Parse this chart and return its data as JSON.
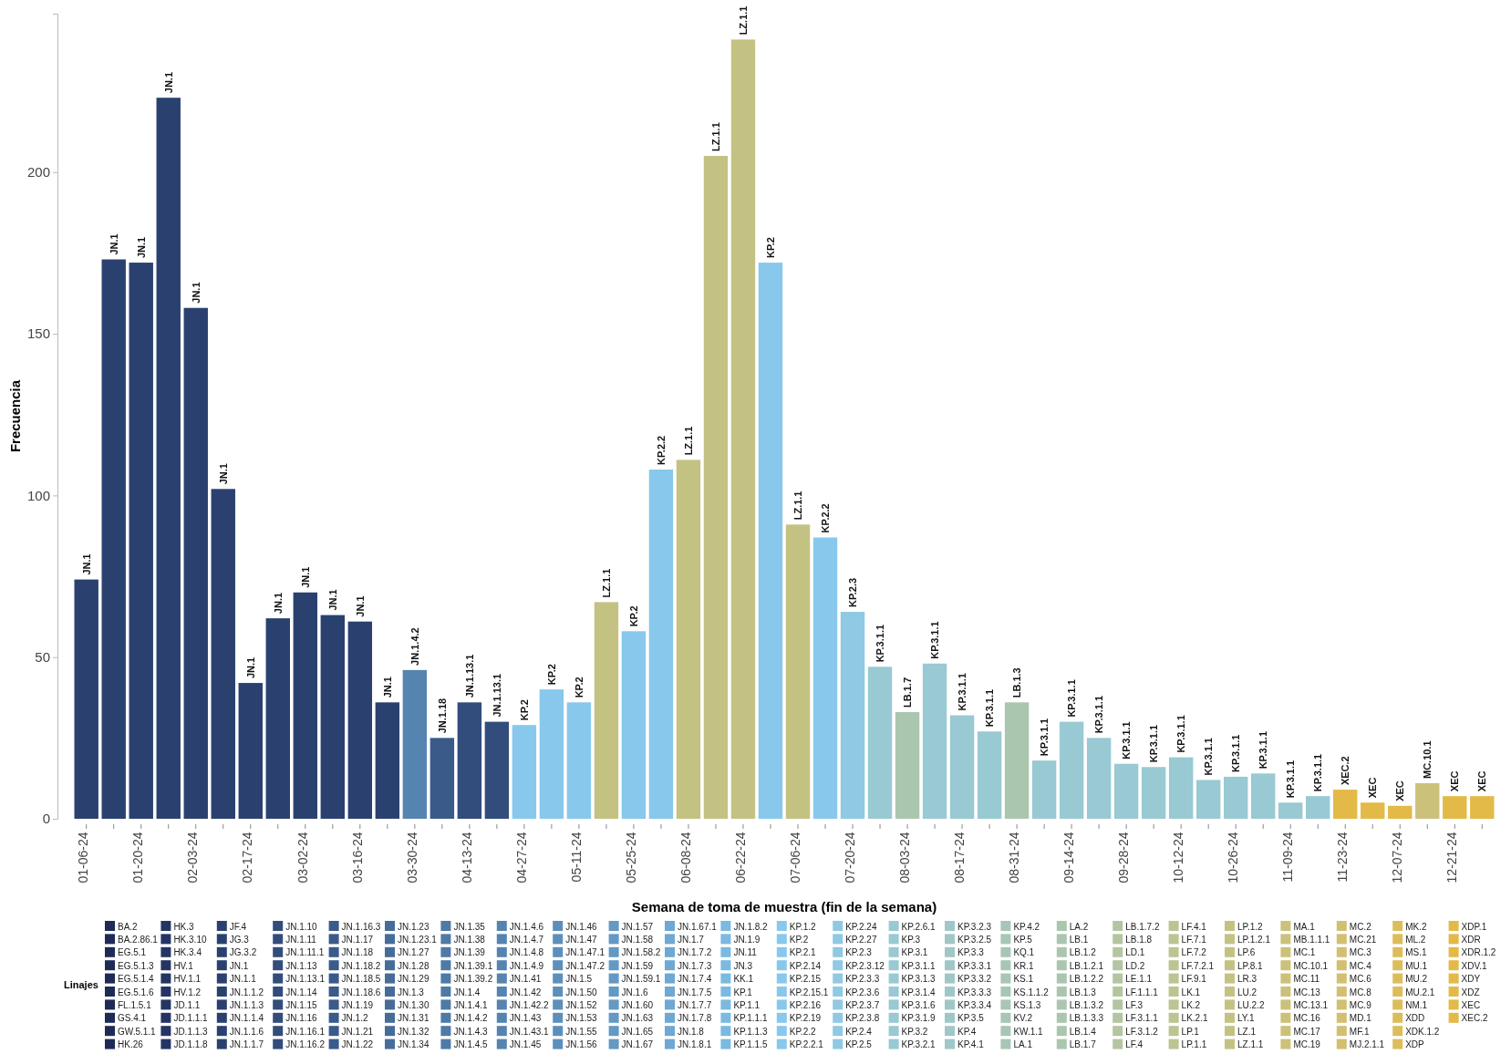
{
  "chart_data": [
    {
      "type": "bar",
      "xlabel": "Semana de toma de muestra (fin de la semana)",
      "ylabel": "Frecuencia",
      "categories": [
        "01-06-24",
        null,
        "01-20-24",
        null,
        "02-03-24",
        null,
        "02-17-24",
        null,
        "03-02-24",
        null,
        "03-16-24",
        null,
        "03-30-24",
        null,
        "04-13-24",
        null,
        "04-27-24",
        null,
        "05-11-24",
        null,
        "05-25-24",
        null,
        "06-08-24",
        null,
        "06-22-24",
        null,
        "07-06-24",
        null,
        "07-20-24",
        null,
        "08-03-24",
        null,
        "08-17-24",
        null,
        "08-31-24",
        null,
        "09-14-24",
        null,
        "09-28-24",
        null,
        "10-12-24",
        null,
        "10-26-24",
        null,
        "11-09-24",
        null,
        "11-23-24",
        null,
        "12-07-24",
        null,
        "12-21-24",
        null
      ],
      "values": [
        74,
        173,
        172,
        223,
        158,
        102,
        42,
        62,
        70,
        63,
        61,
        36,
        46,
        25,
        36,
        30,
        29,
        40,
        36,
        67,
        58,
        108,
        111,
        205,
        241,
        172,
        91,
        87,
        64,
        47,
        33,
        48,
        32,
        27,
        36,
        18,
        30,
        25,
        17,
        16,
        19,
        12,
        13,
        14,
        5,
        7,
        9,
        5,
        4,
        11,
        7,
        7
      ],
      "value_labels": [
        "JN.1",
        "JN.1",
        "JN.1",
        "JN.1",
        "JN.1",
        "JN.1",
        "JN.1",
        "JN.1",
        "JN.1",
        "JN.1",
        "JN.1",
        "JN.1",
        "JN.1.4.2",
        "JN.1.18",
        "JN.1.13.1",
        "JN.1.13.1",
        "KP.2",
        "KP.2",
        "KP.2",
        "LZ.1.1",
        "KP.2",
        "KP.2.2",
        "LZ.1.1",
        "LZ.1.1",
        "LZ.1.1",
        "KP.2",
        "LZ.1.1",
        "KP.2.2",
        "KP.2.3",
        "KP.3.1.1",
        "LB.1.7",
        "KP.3.1.1",
        "KP.3.1.1",
        "KP.3.1.1",
        "LB.1.3",
        "KP.3.1.1",
        "KP.3.1.1",
        "KP.3.1.1",
        "KP.3.1.1",
        "KP.3.1.1",
        "KP.3.1.1",
        "KP.3.1.1",
        "KP.3.1.1",
        "KP.3.1.1",
        "KP.3.1.1",
        "KP.3.1.1",
        "XEC.2",
        "XEC",
        "XEC",
        "MC.10.1",
        "XEC",
        "XEC"
      ],
      "colors": [
        "#2a4170",
        "#2a4170",
        "#2a4170",
        "#2a4170",
        "#2a4170",
        "#2a4170",
        "#2a4170",
        "#2a4170",
        "#2a4170",
        "#2a4170",
        "#2a4170",
        "#2a4170",
        "#5684b0",
        "#3a5a8a",
        "#324c7c",
        "#324c7c",
        "#88c8ec",
        "#88c8ec",
        "#88c8ec",
        "#c4c283",
        "#88c8ec",
        "#88c8ec",
        "#c4c283",
        "#c4c283",
        "#c4c283",
        "#88c8ec",
        "#c4c283",
        "#88c8ec",
        "#8fc9e3",
        "#99c9d3",
        "#abc6ae",
        "#99c9d3",
        "#99c9d3",
        "#99c9d3",
        "#abc6ae",
        "#99c9d3",
        "#99c9d3",
        "#99c9d3",
        "#99c9d3",
        "#99c9d3",
        "#99c9d3",
        "#99c9d3",
        "#99c9d3",
        "#99c9d3",
        "#99c9d3",
        "#99c9d3",
        "#e3ba47",
        "#e3ba47",
        "#e3ba47",
        "#cbc17b",
        "#e3ba47",
        "#e3ba47"
      ],
      "ylim": [
        0,
        249
      ],
      "yticks": [
        0,
        50,
        100,
        150,
        200
      ],
      "grid": false
    },
    {
      "type": "other",
      "title": "Linajes",
      "categories": [
        "BA.2",
        "BA.2.86.1",
        "EG.5.1",
        "EG.5.1.3",
        "EG.5.1.4",
        "EG.5.1.6",
        "FL.1.5.1",
        "GS.4.1",
        "GW.5.1.1",
        "HK.26",
        "HK.3",
        "HK.3.10",
        "HK.3.4",
        "HV.1",
        "HV.1.1",
        "HV.1.2",
        "JD.1.1",
        "JD.1.1.1",
        "JD.1.1.3",
        "JD.1.1.8",
        "JF.4",
        "JG.3",
        "JG.3.2",
        "JN.1",
        "JN.1.1",
        "JN.1.1.2",
        "JN.1.1.3",
        "JN.1.1.4",
        "JN.1.1.6",
        "JN.1.1.7",
        "JN.1.10",
        "JN.1.11",
        "JN.1.11.1",
        "JN.1.13",
        "JN.1.13.1",
        "JN.1.14",
        "JN.1.15",
        "JN.1.16",
        "JN.1.16.1",
        "JN.1.16.2",
        "JN.1.16.3",
        "JN.1.17",
        "JN.1.18",
        "JN.1.18.2",
        "JN.1.18.5",
        "JN.1.18.6",
        "JN.1.19",
        "JN.1.2",
        "JN.1.21",
        "JN.1.22",
        "JN.1.23",
        "JN.1.23.1",
        "JN.1.27",
        "JN.1.28",
        "JN.1.29",
        "JN.1.3",
        "JN.1.30",
        "JN.1.31",
        "JN.1.32",
        "JN.1.34",
        "JN.1.35",
        "JN.1.38",
        "JN.1.39",
        "JN.1.39.1",
        "JN.1.39.2",
        "JN.1.4",
        "JN.1.4.1",
        "JN.1.4.2",
        "JN.1.4.3",
        "JN.1.4.5",
        "JN.1.4.6",
        "JN.1.4.7",
        "JN.1.4.8",
        "JN.1.4.9",
        "JN.1.41",
        "JN.1.42",
        "JN.1.42.2",
        "JN.1.43",
        "JN.1.43.1",
        "JN.1.45",
        "JN.1.46",
        "JN.1.47",
        "JN.1.47.1",
        "JN.1.47.2",
        "JN.1.5",
        "JN.1.50",
        "JN.1.52",
        "JN.1.53",
        "JN.1.55",
        "JN.1.56",
        "JN.1.57",
        "JN.1.58",
        "JN.1.58.2",
        "JN.1.59",
        "JN.1.59.1",
        "JN.1.6",
        "JN.1.60",
        "JN.1.63",
        "JN.1.65",
        "JN.1.67",
        "JN.1.67.1",
        "JN.1.7",
        "JN.1.7.2",
        "JN.1.7.3",
        "JN.1.7.4",
        "JN.1.7.5",
        "JN.1.7.7",
        "JN.1.7.8",
        "JN.1.8",
        "JN.1.8.1",
        "JN.1.8.2",
        "JN.1.9",
        "JN.11",
        "JN.3",
        "KK.1",
        "KP.1",
        "KP.1.1",
        "KP.1.1.1",
        "KP.1.1.3",
        "KP.1.1.5",
        "KP.1.2",
        "KP.2",
        "KP.2.1",
        "KP.2.14",
        "KP.2.15",
        "KP.2.15.1",
        "KP.2.16",
        "KP.2.19",
        "KP.2.2",
        "KP.2.2.1",
        "KP.2.24",
        "KP.2.27",
        "KP.2.3",
        "KP.2.3.12",
        "KP.2.3.3",
        "KP.2.3.6",
        "KP.2.3.7",
        "KP.2.3.8",
        "KP.2.4",
        "KP.2.5",
        "KP.2.6.1",
        "KP.3",
        "KP.3.1",
        "KP.3.1.1",
        "KP.3.1.3",
        "KP.3.1.4",
        "KP.3.1.6",
        "KP.3.1.9",
        "KP.3.2",
        "KP.3.2.1",
        "KP.3.2.3",
        "KP.3.2.5",
        "KP.3.3",
        "KP.3.3.1",
        "KP.3.3.2",
        "KP.3.3.3",
        "KP.3.3.4",
        "KP.3.5",
        "KP.4",
        "KP.4.1",
        "KP.4.2",
        "KP.5",
        "KQ.1",
        "KR.1",
        "KS.1",
        "KS.1.1.2",
        "KS.1.3",
        "KV.2",
        "KW.1.1",
        "LA.1",
        "LA.2",
        "LB.1",
        "LB.1.2",
        "LB.1.2.1",
        "LB.1.2.2",
        "LB.1.3",
        "LB.1.3.2",
        "LB.1.3.3",
        "LB.1.4",
        "LB.1.7",
        "LB.1.7.2",
        "LB.1.8",
        "LD.1",
        "LD.2",
        "LE.1.1",
        "LF.1.1.1",
        "LF.3",
        "LF.3.1.1",
        "LF.3.1.2",
        "LF.4",
        "LF.4.1",
        "LF.7.1",
        "LF.7.2",
        "LF.7.2.1",
        "LF.9.1",
        "LK.1",
        "LK.2",
        "LK.2.1",
        "LP.1",
        "LP.1.1",
        "LP.1.2",
        "LP.1.2.1",
        "LP.6",
        "LP.8.1",
        "LR.3",
        "LU.2",
        "LU.2.2",
        "LY.1",
        "LZ.1",
        "LZ.1.1",
        "MA.1",
        "MB.1.1.1",
        "MC.1",
        "MC.10.1",
        "MC.11",
        "MC.13",
        "MC.13.1",
        "MC.16",
        "MC.17",
        "MC.19",
        "MC.2",
        "MC.21",
        "MC.3",
        "MC.4",
        "MC.6",
        "MC.8",
        "MC.9",
        "MD.1",
        "MF.1",
        "MJ.2.1.1",
        "MK.2",
        "ML.2",
        "MS.1",
        "MU.1",
        "MU.2",
        "MU.2.1",
        "NM.1",
        "XDD",
        "XDK.1.2",
        "XDP",
        "XDP.1",
        "XDR",
        "XDR.1.2",
        "XDV.1",
        "XDY",
        "XDZ",
        "XEC",
        "XEC.2"
      ],
      "colors": [
        "#1f2b57",
        "#1f2b57",
        "#1f2b57",
        "#1f2b57",
        "#1f2b57",
        "#1f2b57",
        "#1f2b57",
        "#1f2b57",
        "#1f2b57",
        "#1f2b57",
        "#243565",
        "#243565",
        "#243565",
        "#243565",
        "#243565",
        "#243565",
        "#243565",
        "#243565",
        "#243565",
        "#243565",
        "#2a4170",
        "#2a4170",
        "#2a4170",
        "#2a4170",
        "#2a4170",
        "#2a4170",
        "#2a4170",
        "#2a4170",
        "#2a4170",
        "#2a4170",
        "#324c7c",
        "#324c7c",
        "#324c7c",
        "#324c7c",
        "#324c7c",
        "#324c7c",
        "#324c7c",
        "#324c7c",
        "#324c7c",
        "#324c7c",
        "#3a5a8a",
        "#3a5a8a",
        "#3a5a8a",
        "#3a5a8a",
        "#3a5a8a",
        "#3a5a8a",
        "#3a5a8a",
        "#3a5a8a",
        "#3a5a8a",
        "#3a5a8a",
        "#466d9a",
        "#466d9a",
        "#466d9a",
        "#466d9a",
        "#466d9a",
        "#466d9a",
        "#466d9a",
        "#466d9a",
        "#466d9a",
        "#466d9a",
        "#4e7aa6",
        "#4e7aa6",
        "#4e7aa6",
        "#4e7aa6",
        "#4e7aa6",
        "#4e7aa6",
        "#4e7aa6",
        "#4e7aa6",
        "#4e7aa6",
        "#4e7aa6",
        "#5684b0",
        "#5684b0",
        "#5684b0",
        "#5684b0",
        "#5684b0",
        "#5684b0",
        "#5684b0",
        "#5684b0",
        "#5684b0",
        "#5684b0",
        "#5d8fbb",
        "#5d8fbb",
        "#5d8fbb",
        "#5d8fbb",
        "#5d8fbb",
        "#5d8fbb",
        "#5d8fbb",
        "#5d8fbb",
        "#5d8fbb",
        "#5d8fbb",
        "#6399c4",
        "#6399c4",
        "#6399c4",
        "#6399c4",
        "#6399c4",
        "#6399c4",
        "#6399c4",
        "#6399c4",
        "#6399c4",
        "#6399c4",
        "#6ea8d3",
        "#6ea8d3",
        "#6ea8d3",
        "#6ea8d3",
        "#6ea8d3",
        "#6ea8d3",
        "#6ea8d3",
        "#6ea8d3",
        "#6ea8d3",
        "#6ea8d3",
        "#7ab9e2",
        "#7ab9e2",
        "#7ab9e2",
        "#7ab9e2",
        "#7ab9e2",
        "#7ab9e2",
        "#7ab9e2",
        "#7ab9e2",
        "#7ab9e2",
        "#7ab9e2",
        "#88c8ec",
        "#88c8ec",
        "#88c8ec",
        "#88c8ec",
        "#88c8ec",
        "#88c8ec",
        "#88c8ec",
        "#88c8ec",
        "#88c8ec",
        "#88c8ec",
        "#8fc9e3",
        "#8fc9e3",
        "#8fc9e3",
        "#8fc9e3",
        "#8fc9e3",
        "#8fc9e3",
        "#8fc9e3",
        "#8fc9e3",
        "#8fc9e3",
        "#8fc9e3",
        "#99c9d3",
        "#99c9d3",
        "#99c9d3",
        "#99c9d3",
        "#99c9d3",
        "#99c9d3",
        "#99c9d3",
        "#99c9d3",
        "#99c9d3",
        "#99c9d3",
        "#a0c7c7",
        "#a0c7c7",
        "#a0c7c7",
        "#a0c7c7",
        "#a0c7c7",
        "#a0c7c7",
        "#a0c7c7",
        "#a0c7c7",
        "#a0c7c7",
        "#a0c7c7",
        "#a7c6b5",
        "#a7c6b5",
        "#a7c6b5",
        "#a7c6b5",
        "#a7c6b5",
        "#a7c6b5",
        "#a7c6b5",
        "#a7c6b5",
        "#a7c6b5",
        "#a7c6b5",
        "#abc6ae",
        "#abc6ae",
        "#abc6ae",
        "#abc6ae",
        "#abc6ae",
        "#abc6ae",
        "#abc6ae",
        "#abc6ae",
        "#abc6ae",
        "#abc6ae",
        "#b4c5a1",
        "#b4c5a1",
        "#b4c5a1",
        "#b4c5a1",
        "#b4c5a1",
        "#b4c5a1",
        "#b4c5a1",
        "#b4c5a1",
        "#b4c5a1",
        "#b4c5a1",
        "#bcc491",
        "#bcc491",
        "#bcc491",
        "#bcc491",
        "#bcc491",
        "#bcc491",
        "#bcc491",
        "#bcc491",
        "#bcc491",
        "#bcc491",
        "#c4c283",
        "#c4c283",
        "#c4c283",
        "#c4c283",
        "#c4c283",
        "#c4c283",
        "#c4c283",
        "#c4c283",
        "#c4c283",
        "#c4c283",
        "#cbc17b",
        "#cbc17b",
        "#cbc17b",
        "#cbc17b",
        "#cbc17b",
        "#cbc17b",
        "#cbc17b",
        "#cbc17b",
        "#cbc17b",
        "#cbc17b",
        "#d3bf70",
        "#d3bf70",
        "#d3bf70",
        "#d3bf70",
        "#d3bf70",
        "#d3bf70",
        "#d3bf70",
        "#d3bf70",
        "#d3bf70",
        "#d3bf70",
        "#dcbd5c",
        "#dcbd5c",
        "#dcbd5c",
        "#dcbd5c",
        "#dcbd5c",
        "#dcbd5c",
        "#dcbd5c",
        "#dcbd5c",
        "#dcbd5c",
        "#dcbd5c",
        "#e3ba47",
        "#e3ba47",
        "#e3ba47",
        "#e3ba47",
        "#e3ba47",
        "#e3ba47",
        "#e3ba47",
        "#e3ba47"
      ]
    }
  ]
}
